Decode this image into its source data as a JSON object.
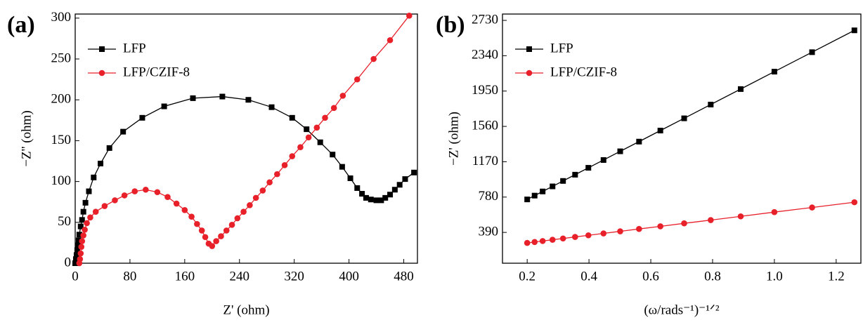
{
  "chart_data": [
    {
      "type": "line",
      "label": "(a)",
      "xlabel": "Z' (ohm)",
      "ylabel": "−Z'' (ohm)",
      "xlim": [
        0,
        500
      ],
      "ylim": [
        0,
        305
      ],
      "xticks": [
        0,
        80,
        160,
        240,
        320,
        400,
        480
      ],
      "yticks": [
        0,
        50,
        100,
        150,
        200,
        250,
        300
      ],
      "legend": "upper left",
      "series": [
        {
          "name": "LFP",
          "color": "#000000",
          "marker": "square",
          "x": [
            0,
            1,
            2,
            3,
            4,
            5,
            6,
            8,
            10,
            12,
            15,
            20,
            27,
            37,
            50,
            70,
            98,
            130,
            172,
            215,
            253,
            287,
            317,
            338,
            358,
            376,
            390,
            402,
            412,
            419,
            425,
            432,
            440,
            447,
            453,
            460,
            467,
            474,
            482,
            495
          ],
          "values": [
            0,
            5,
            10,
            16,
            22,
            28,
            35,
            45,
            53,
            63,
            74,
            88,
            105,
            122,
            141,
            161,
            178,
            192,
            202,
            204,
            200,
            191,
            178,
            164,
            148,
            133,
            118,
            104,
            92,
            85,
            80,
            78,
            77,
            77,
            80,
            84,
            90,
            96,
            103,
            111
          ]
        },
        {
          "name": "LFP/CZIF-8",
          "color": "#e8202a",
          "marker": "circle",
          "x": [
            6,
            7,
            8,
            9,
            10,
            12,
            14,
            17,
            22,
            30,
            43,
            58,
            72,
            87,
            103,
            120,
            135,
            148,
            160,
            170,
            178,
            185,
            190,
            195,
            200,
            206,
            213,
            221,
            229,
            237,
            246,
            255,
            264,
            274,
            284,
            295,
            306,
            317,
            329,
            341,
            353,
            365,
            378,
            391,
            412,
            436,
            460,
            488
          ],
          "values": [
            0,
            5,
            12,
            20,
            27,
            34,
            41,
            49,
            56,
            63,
            70,
            77,
            83,
            88,
            90,
            87,
            81,
            73,
            65,
            57,
            48,
            40,
            32,
            24,
            21,
            27,
            33,
            40,
            47,
            55,
            63,
            71,
            80,
            89,
            99,
            109,
            120,
            131,
            142,
            154,
            166,
            178,
            190,
            205,
            225,
            250,
            273,
            303
          ]
        }
      ]
    },
    {
      "type": "line",
      "label": "(b)",
      "xlabel": "(ω/rads⁻¹)⁻¹ᐟ²",
      "ylabel": "−Z' (ohm)",
      "xlim": [
        0.12,
        1.28
      ],
      "ylim": [
        50,
        2800
      ],
      "xticks": [
        0.2,
        0.4,
        0.6,
        0.8,
        {
          "value": 1,
          "label": "1.0"
        },
        1.2
      ],
      "yticks": [
        390,
        780,
        1170,
        1560,
        1950,
        2340,
        2730
      ],
      "legend": "upper left",
      "series": [
        {
          "name": "LFP",
          "color": "#000000",
          "marker": "square",
          "x": [
            0.2,
            0.224,
            0.25,
            0.282,
            0.316,
            0.355,
            0.398,
            0.447,
            0.501,
            0.562,
            0.631,
            0.708,
            0.794,
            0.891,
            1.0,
            1.122,
            1.259
          ],
          "values": [
            754,
            796,
            842,
            898,
            958,
            1027,
            1103,
            1189,
            1285,
            1392,
            1514,
            1649,
            1801,
            1972,
            2164,
            2379,
            2620
          ]
        },
        {
          "name": "LFP/CZIF-8",
          "color": "#e8202a",
          "marker": "circle",
          "x": [
            0.2,
            0.224,
            0.25,
            0.282,
            0.316,
            0.355,
            0.398,
            0.447,
            0.501,
            0.562,
            0.631,
            0.708,
            0.794,
            0.891,
            1.0,
            1.122,
            1.259
          ],
          "values": [
            274,
            284,
            295,
            309,
            323,
            340,
            358,
            379,
            402,
            428,
            457,
            490,
            526,
            567,
            614,
            665,
            723
          ]
        }
      ]
    }
  ]
}
